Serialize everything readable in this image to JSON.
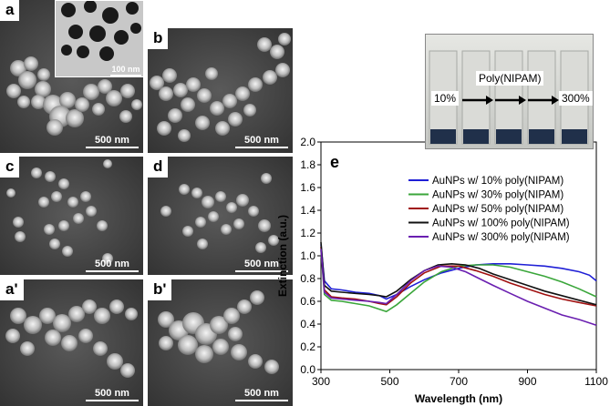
{
  "panels": {
    "a": {
      "label": "a",
      "scale": "500 nm"
    },
    "a_inset": {
      "scale": "100 nm"
    },
    "b": {
      "label": "b",
      "scale": "500 nm"
    },
    "c": {
      "label": "c",
      "scale": "500 nm"
    },
    "d": {
      "label": "d",
      "scale": "500 nm"
    },
    "a2": {
      "label": "a'",
      "scale": "500 nm"
    },
    "b2": {
      "label": "b'",
      "scale": "500 nm"
    }
  },
  "photo_inset": {
    "title": "Poly(NIPAM)",
    "left_label": "10%",
    "right_label": "300%"
  },
  "chart_data": {
    "type": "line",
    "panel_label": "e",
    "xlabel": "Wavelength (nm)",
    "ylabel": "Extinction (a.u.)",
    "xlim": [
      300,
      1100
    ],
    "ylim": [
      0.0,
      2.0
    ],
    "xticks": [
      300,
      500,
      700,
      900,
      1100
    ],
    "yticks": [
      "0.0",
      "0.2",
      "0.4",
      "0.6",
      "0.8",
      "1.0",
      "1.2",
      "1.4",
      "1.6",
      "1.8",
      "2.0"
    ],
    "grid": false,
    "legend_position": "upper-middle",
    "series": [
      {
        "name": "AuNPs w/ 10% poly(NIPAM)",
        "color": "#1f1fd6",
        "x": [
          300,
          310,
          330,
          360,
          400,
          440,
          470,
          490,
          520,
          560,
          600,
          650,
          700,
          750,
          800,
          850,
          900,
          950,
          1000,
          1050,
          1080,
          1100
        ],
        "y": [
          1.1,
          0.78,
          0.71,
          0.7,
          0.68,
          0.67,
          0.65,
          0.62,
          0.66,
          0.73,
          0.79,
          0.85,
          0.89,
          0.92,
          0.93,
          0.93,
          0.92,
          0.91,
          0.89,
          0.86,
          0.83,
          0.78
        ]
      },
      {
        "name": "AuNPs w/ 30% poly(NIPAM)",
        "color": "#3aa63a",
        "x": [
          300,
          310,
          330,
          360,
          400,
          440,
          470,
          490,
          520,
          560,
          600,
          650,
          700,
          750,
          800,
          850,
          900,
          950,
          1000,
          1050,
          1100
        ],
        "y": [
          1.05,
          0.66,
          0.61,
          0.6,
          0.58,
          0.56,
          0.53,
          0.51,
          0.57,
          0.67,
          0.77,
          0.86,
          0.91,
          0.92,
          0.92,
          0.9,
          0.86,
          0.82,
          0.77,
          0.71,
          0.64
        ]
      },
      {
        "name": "AuNPs w/ 50% poly(NIPAM)",
        "color": "#a01010",
        "x": [
          300,
          310,
          330,
          360,
          400,
          440,
          470,
          490,
          520,
          560,
          600,
          650,
          700,
          750,
          800,
          850,
          900,
          950,
          1000,
          1050,
          1100
        ],
        "y": [
          1.08,
          0.7,
          0.64,
          0.63,
          0.62,
          0.6,
          0.58,
          0.57,
          0.64,
          0.76,
          0.85,
          0.91,
          0.91,
          0.87,
          0.82,
          0.76,
          0.71,
          0.66,
          0.62,
          0.59,
          0.56
        ]
      },
      {
        "name": "AuNPs w/ 100% poly(NIPAM)",
        "color": "#111111",
        "x": [
          300,
          310,
          330,
          360,
          400,
          440,
          470,
          490,
          520,
          560,
          600,
          640,
          680,
          720,
          760,
          800,
          850,
          900,
          950,
          1000,
          1050,
          1100
        ],
        "y": [
          1.12,
          0.74,
          0.69,
          0.68,
          0.67,
          0.66,
          0.65,
          0.64,
          0.69,
          0.79,
          0.87,
          0.92,
          0.93,
          0.92,
          0.89,
          0.84,
          0.79,
          0.74,
          0.69,
          0.65,
          0.61,
          0.57
        ]
      },
      {
        "name": "AuNPs w/ 300% poly(NIPAM)",
        "color": "#6a1fb0",
        "x": [
          300,
          310,
          330,
          360,
          400,
          440,
          470,
          490,
          520,
          560,
          600,
          640,
          680,
          720,
          760,
          800,
          850,
          900,
          950,
          1000,
          1050,
          1100
        ],
        "y": [
          1.06,
          0.68,
          0.63,
          0.62,
          0.61,
          0.6,
          0.59,
          0.58,
          0.66,
          0.78,
          0.87,
          0.91,
          0.9,
          0.86,
          0.8,
          0.74,
          0.67,
          0.6,
          0.54,
          0.48,
          0.44,
          0.39
        ]
      }
    ]
  }
}
